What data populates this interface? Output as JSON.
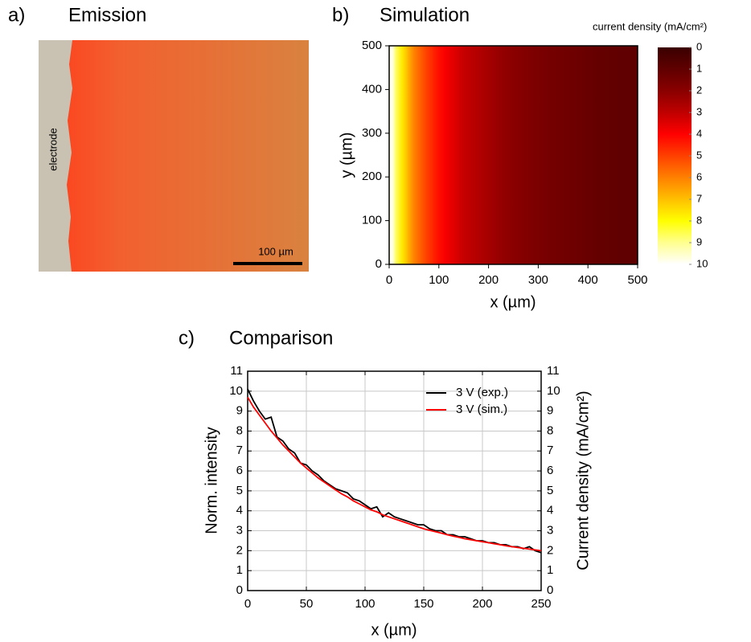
{
  "chart_data": [
    {
      "type": "image",
      "label": "a)",
      "title": "Emission",
      "annotations": [
        "electrode",
        "100 µm"
      ]
    },
    {
      "type": "heatmap",
      "label": "b)",
      "title": "Simulation",
      "xlabel": "x (µm)",
      "ylabel": "y (µm)",
      "colorbar_label": "current density (mA/cm²)",
      "x": [
        0,
        25,
        50,
        75,
        100,
        125,
        150,
        175,
        200,
        225,
        250,
        275,
        300,
        325,
        350,
        375,
        400,
        425,
        450,
        475,
        500
      ],
      "values": [
        9.8,
        7.7,
        6.0,
        5.0,
        4.2,
        3.6,
        3.1,
        2.8,
        2.5,
        2.2,
        2.0,
        1.8,
        1.65,
        1.5,
        1.4,
        1.3,
        1.2,
        1.1,
        1.05,
        1.0,
        0.95
      ],
      "xlim": [
        0,
        500
      ],
      "ylim": [
        0,
        500
      ],
      "xticks": [
        0,
        100,
        200,
        300,
        400,
        500
      ],
      "yticks": [
        0,
        100,
        200,
        300,
        400,
        500
      ],
      "clim": [
        0,
        10
      ],
      "cticks": [
        0,
        1,
        2,
        3,
        4,
        5,
        6,
        7,
        8,
        9,
        10
      ],
      "colormap": [
        "#3a0000",
        "#600000",
        "#8a0000",
        "#c00000",
        "#ff0000",
        "#ff4000",
        "#ff8000",
        "#ffc000",
        "#ffff00",
        "#ffff90",
        "#ffffff"
      ]
    },
    {
      "type": "line",
      "label": "c)",
      "title": "Comparison",
      "xlabel": "x (µm)",
      "ylabel": "Norm. intensity",
      "y2label": "Current density (mA/cm²)",
      "x": [
        0,
        5,
        10,
        15,
        20,
        25,
        30,
        35,
        40,
        45,
        50,
        55,
        60,
        65,
        70,
        75,
        80,
        85,
        90,
        95,
        100,
        105,
        110,
        115,
        120,
        125,
        130,
        135,
        140,
        145,
        150,
        155,
        160,
        165,
        170,
        175,
        180,
        185,
        190,
        195,
        200,
        205,
        210,
        215,
        220,
        225,
        230,
        235,
        240,
        245,
        250
      ],
      "series": [
        {
          "name": "3 V (exp.)",
          "color": "#000000",
          "values": [
            10.1,
            9.5,
            9.0,
            8.6,
            8.7,
            7.7,
            7.5,
            7.1,
            6.9,
            6.4,
            6.3,
            6.0,
            5.8,
            5.5,
            5.3,
            5.1,
            5.0,
            4.9,
            4.6,
            4.5,
            4.3,
            4.1,
            4.2,
            3.7,
            3.9,
            3.7,
            3.6,
            3.5,
            3.4,
            3.3,
            3.3,
            3.1,
            3.0,
            3.0,
            2.8,
            2.8,
            2.7,
            2.7,
            2.6,
            2.5,
            2.5,
            2.4,
            2.4,
            2.3,
            2.3,
            2.2,
            2.2,
            2.1,
            2.2,
            2.0,
            1.9
          ]
        },
        {
          "name": "3 V (sim.)",
          "color": "#ff0000",
          "axis": "y2",
          "values": [
            9.7,
            9.2,
            8.8,
            8.4,
            8.0,
            7.65,
            7.3,
            7.0,
            6.7,
            6.4,
            6.15,
            5.9,
            5.65,
            5.45,
            5.25,
            5.05,
            4.85,
            4.7,
            4.5,
            4.35,
            4.2,
            4.05,
            3.95,
            3.8,
            3.7,
            3.6,
            3.5,
            3.4,
            3.3,
            3.2,
            3.1,
            3.02,
            2.95,
            2.88,
            2.8,
            2.73,
            2.67,
            2.6,
            2.55,
            2.5,
            2.45,
            2.4,
            2.35,
            2.3,
            2.25,
            2.2,
            2.16,
            2.12,
            2.08,
            2.04,
            2.0
          ]
        }
      ],
      "xlim": [
        0,
        250
      ],
      "xticks": [
        0,
        50,
        100,
        150,
        200,
        250
      ],
      "ylim": [
        0,
        11
      ],
      "yticks": [
        0,
        1,
        2,
        3,
        4,
        5,
        6,
        7,
        8,
        9,
        10,
        11
      ],
      "y2lim": [
        0,
        11
      ],
      "y2ticks": [
        0,
        1,
        2,
        3,
        4,
        5,
        6,
        7,
        8,
        9,
        10,
        11
      ],
      "grid": true,
      "legend": "upper right"
    }
  ]
}
